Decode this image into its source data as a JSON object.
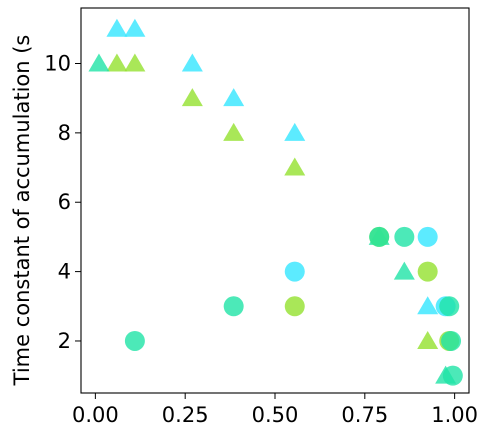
{
  "chart_data": {
    "type": "scatter",
    "title": "",
    "xlabel": "",
    "ylabel": "Time constant of accumulation (s",
    "xlim": [
      -0.04,
      1.04
    ],
    "ylim": [
      0.5,
      11.6
    ],
    "x_ticks": [
      0.0,
      0.25,
      0.5,
      0.75,
      1.0
    ],
    "x_tick_labels": [
      "0.00",
      "0.25",
      "0.50",
      "0.75",
      "1.00"
    ],
    "y_ticks": [
      2,
      4,
      6,
      8,
      10
    ],
    "y_tick_labels": [
      "2",
      "4",
      "6",
      "8",
      "10"
    ],
    "grid": false,
    "legend": "none",
    "series": [
      {
        "marker": "triangle",
        "color": "#33e6ff",
        "points": [
          [
            0.06,
            11
          ],
          [
            0.11,
            11
          ],
          [
            0.27,
            10
          ],
          [
            0.385,
            9
          ],
          [
            0.555,
            8
          ],
          [
            0.925,
            3
          ]
        ]
      },
      {
        "marker": "triangle",
        "color": "#94e12e",
        "points": [
          [
            0.06,
            10
          ],
          [
            0.11,
            10
          ],
          [
            0.27,
            9
          ],
          [
            0.385,
            8
          ],
          [
            0.555,
            7
          ],
          [
            0.925,
            2
          ]
        ]
      },
      {
        "marker": "triangle",
        "color": "#1fe3a6",
        "points": [
          [
            0.01,
            10
          ],
          [
            0.79,
            5
          ],
          [
            0.86,
            4
          ],
          [
            0.975,
            1
          ]
        ]
      },
      {
        "marker": "circle",
        "color": "#33e6ff",
        "points": [
          [
            0.555,
            4
          ],
          [
            0.925,
            5
          ],
          [
            0.975,
            3
          ]
        ]
      },
      {
        "marker": "circle",
        "color": "#94e12e",
        "points": [
          [
            0.555,
            3
          ],
          [
            0.925,
            4
          ],
          [
            0.985,
            2
          ],
          [
            0.79,
            5
          ]
        ]
      },
      {
        "marker": "circle",
        "color": "#1fe3a6",
        "points": [
          [
            0.11,
            2
          ],
          [
            0.385,
            3
          ],
          [
            0.79,
            5
          ],
          [
            0.86,
            5
          ],
          [
            0.985,
            3
          ],
          [
            0.99,
            2
          ],
          [
            0.995,
            1
          ]
        ]
      }
    ]
  }
}
